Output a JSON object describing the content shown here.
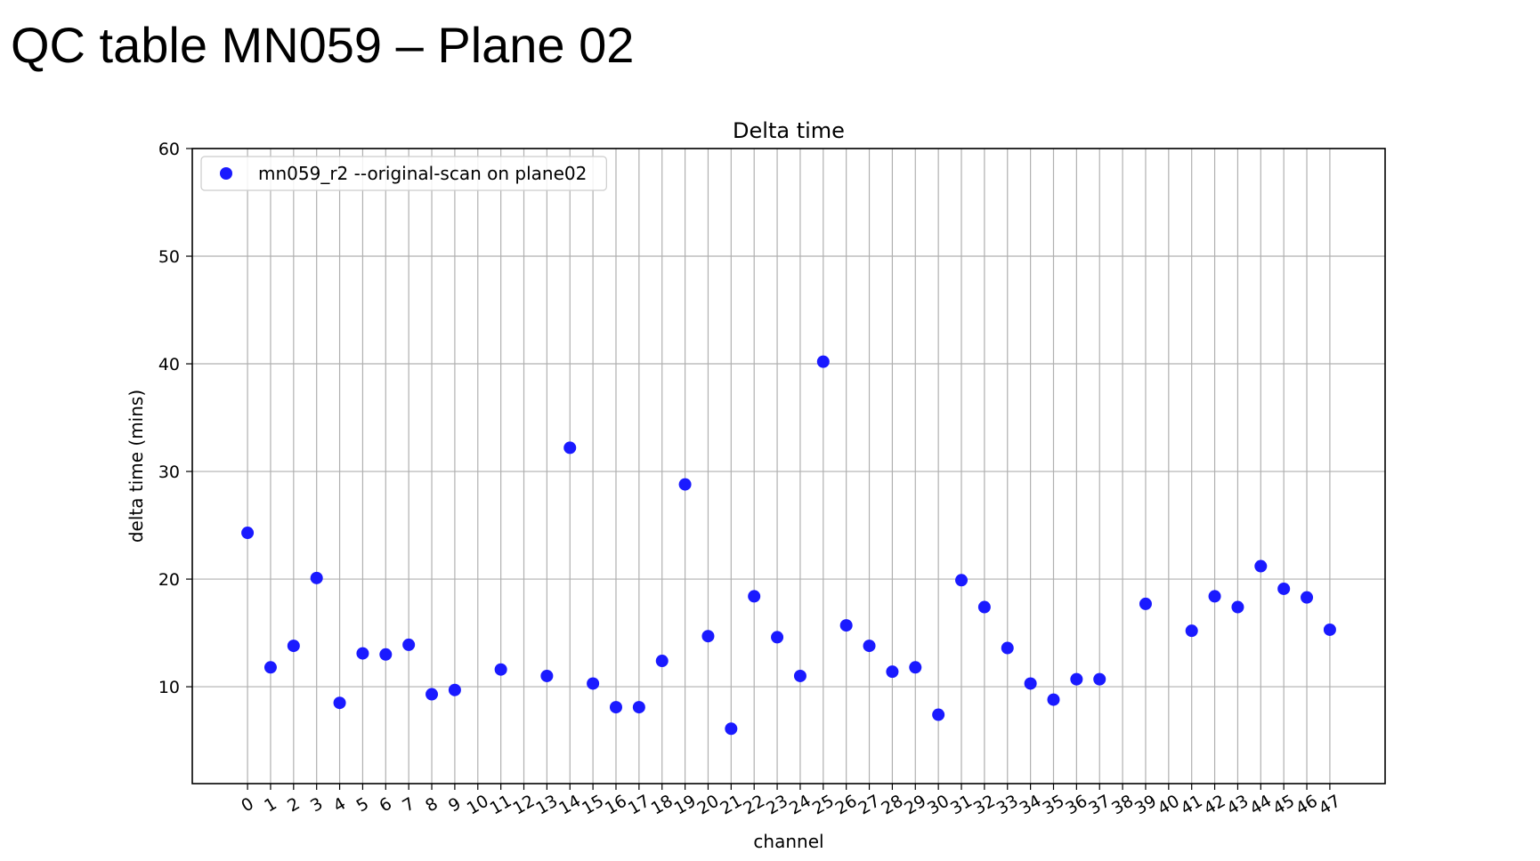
{
  "slide": {
    "title": "QC table MN059 – Plane 02"
  },
  "chart_data": {
    "type": "scatter",
    "title": "Delta time",
    "xlabel": "channel",
    "ylabel": "delta time (mins)",
    "xlim": [
      -2.4,
      49.4
    ],
    "ylim": [
      1,
      60
    ],
    "x_ticks": [
      0,
      1,
      2,
      3,
      4,
      5,
      6,
      7,
      8,
      9,
      10,
      11,
      12,
      13,
      14,
      15,
      16,
      17,
      18,
      19,
      20,
      21,
      22,
      23,
      24,
      25,
      26,
      27,
      28,
      29,
      30,
      31,
      32,
      33,
      34,
      35,
      36,
      37,
      38,
      39,
      40,
      41,
      42,
      43,
      44,
      45,
      46,
      47
    ],
    "y_ticks": [
      10,
      20,
      30,
      40,
      50,
      60
    ],
    "grid": true,
    "legend_position": "top-left",
    "colors": {
      "series": "#1a1aff",
      "grid": "#b0b0b0",
      "axes": "#000000"
    },
    "series": [
      {
        "name": "mn059_r2 --original-scan on plane02",
        "x": [
          0,
          1,
          2,
          3,
          4,
          5,
          6,
          7,
          8,
          9,
          11,
          13,
          14,
          15,
          16,
          17,
          18,
          19,
          20,
          21,
          22,
          23,
          24,
          25,
          26,
          27,
          28,
          29,
          30,
          31,
          32,
          33,
          34,
          35,
          36,
          37,
          39,
          41,
          42,
          43,
          44,
          45,
          46,
          47
        ],
        "y": [
          24.3,
          11.8,
          13.8,
          20.1,
          8.5,
          13.1,
          13.0,
          13.9,
          9.3,
          9.7,
          11.6,
          11.0,
          32.2,
          10.3,
          8.1,
          8.1,
          12.4,
          28.8,
          14.7,
          6.1,
          18.4,
          14.6,
          11.0,
          40.2,
          15.7,
          13.8,
          11.4,
          11.8,
          7.4,
          19.9,
          17.4,
          13.6,
          10.3,
          8.8,
          10.7,
          10.7,
          17.7,
          15.2,
          18.4,
          17.4,
          21.2,
          19.1,
          18.3,
          15.3
        ]
      }
    ]
  }
}
